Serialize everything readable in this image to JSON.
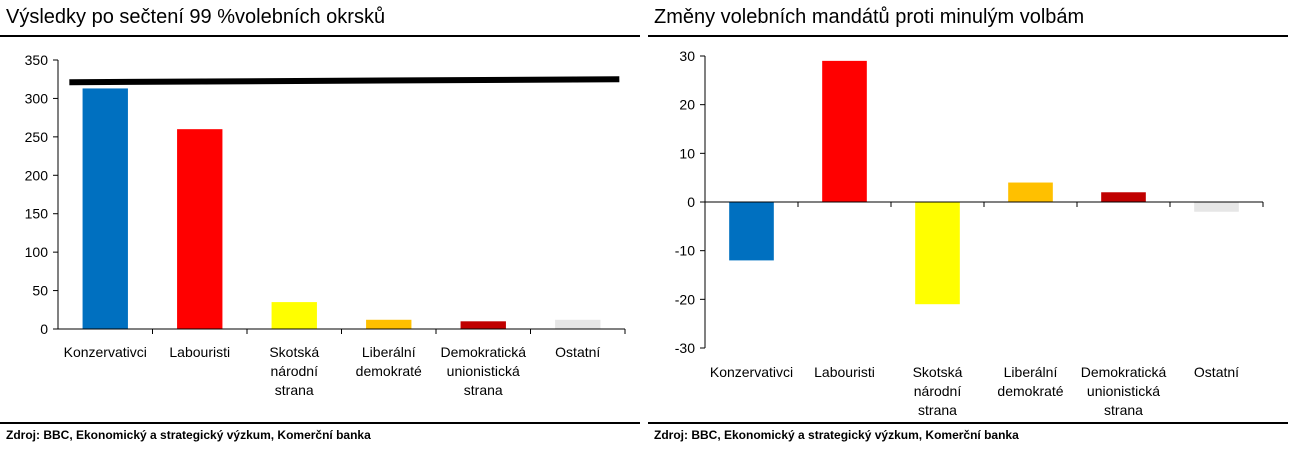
{
  "source_note": "Zdroj: BBC, Ekonomický a strategický výzkum, Komerční banka",
  "chart_data": [
    {
      "type": "bar",
      "title": "Výsledky po sečtení 99 %volebních okrsků",
      "categories": [
        [
          "Konzervativci"
        ],
        [
          "Labouristi"
        ],
        [
          "Skotská",
          "národní",
          "strana"
        ],
        [
          "Liberální",
          "demokraté"
        ],
        [
          "Demokratická",
          "unionistická",
          "strana"
        ],
        [
          "Ostatní"
        ]
      ],
      "values": [
        313,
        260,
        35,
        12,
        10,
        12
      ],
      "colors": [
        "#0070C0",
        "#FF0000",
        "#FFFF00",
        "#FFC000",
        "#C00000",
        "#E6E6E6"
      ],
      "ylim": [
        0,
        350
      ],
      "yticks": [
        0,
        50,
        100,
        150,
        200,
        250,
        300,
        350
      ],
      "reference_line": 323,
      "reference_line_color": "#000000",
      "grid": false
    },
    {
      "type": "bar",
      "title": "Změny volebních mandátů proti minulým volbám",
      "categories": [
        [
          "Konzervativci"
        ],
        [
          "Labouristi"
        ],
        [
          "Skotská",
          "národní",
          "strana"
        ],
        [
          "Liberální",
          "demokraté"
        ],
        [
          "Demokratická",
          "unionistická",
          "strana"
        ],
        [
          "Ostatní"
        ]
      ],
      "values": [
        -12,
        29,
        -21,
        4,
        2,
        -2
      ],
      "colors": [
        "#0070C0",
        "#FF0000",
        "#FFFF00",
        "#FFC000",
        "#C00000",
        "#E6E6E6"
      ],
      "ylim": [
        -30,
        30
      ],
      "yticks": [
        -30,
        -20,
        -10,
        0,
        10,
        20,
        30
      ],
      "grid": false
    }
  ]
}
